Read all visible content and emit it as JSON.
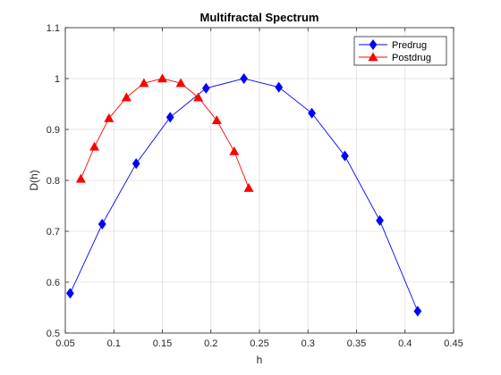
{
  "chart_data": {
    "type": "line",
    "title": "Multifractal Spectrum",
    "xlabel": "h",
    "ylabel": "D(h)",
    "xlim": [
      0.05,
      0.45
    ],
    "ylim": [
      0.5,
      1.1
    ],
    "xticks": [
      "0.05",
      "0.1",
      "0.15",
      "0.2",
      "0.25",
      "0.3",
      "0.35",
      "0.4",
      "0.45"
    ],
    "yticks": [
      "0.5",
      "0.6",
      "0.7",
      "0.8",
      "0.9",
      "1",
      "1.1"
    ],
    "grid": true,
    "legend_position": "top-right",
    "series": [
      {
        "name": "Predrug",
        "color": "#0000ff",
        "marker": "diamond",
        "x": [
          0.055,
          0.088,
          0.123,
          0.158,
          0.195,
          0.234,
          0.27,
          0.304,
          0.338,
          0.374,
          0.413
        ],
        "y": [
          0.578,
          0.714,
          0.833,
          0.924,
          0.981,
          1.0,
          0.983,
          0.932,
          0.848,
          0.721,
          0.543
        ]
      },
      {
        "name": "Postdrug",
        "color": "#ff0000",
        "marker": "triangle",
        "x": [
          0.066,
          0.08,
          0.095,
          0.113,
          0.131,
          0.15,
          0.169,
          0.187,
          0.206,
          0.224,
          0.239
        ],
        "y": [
          0.803,
          0.866,
          0.922,
          0.963,
          0.991,
          1.0,
          0.991,
          0.963,
          0.918,
          0.857,
          0.785
        ]
      }
    ]
  }
}
